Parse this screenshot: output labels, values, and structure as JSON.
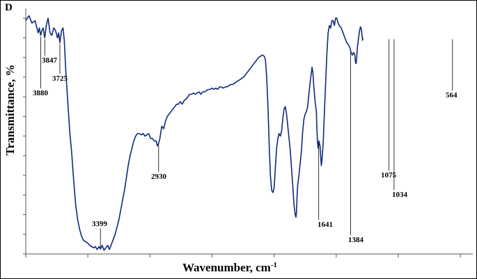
{
  "panel_label": "D",
  "chart_data": {
    "type": "line",
    "xlabel": "Wavenumber, cm",
    "xlabel_superscript": "-1",
    "ylabel": "Transmittance, %",
    "x_reversed": true,
    "xlim": [
      4000,
      400
    ],
    "ylim": [
      0,
      100
    ],
    "grid": false,
    "series": [
      {
        "color": "#0e2a7a",
        "points": [
          [
            4000,
            95
          ],
          [
            3975,
            97
          ],
          [
            3950,
            94
          ],
          [
            3925,
            95
          ],
          [
            3900,
            90
          ],
          [
            3890,
            92
          ],
          [
            3880,
            89
          ],
          [
            3870,
            91
          ],
          [
            3860,
            92
          ],
          [
            3847,
            88
          ],
          [
            3835,
            93
          ],
          [
            3820,
            96
          ],
          [
            3805,
            90
          ],
          [
            3790,
            89
          ],
          [
            3775,
            92
          ],
          [
            3760,
            91
          ],
          [
            3745,
            88
          ],
          [
            3735,
            90
          ],
          [
            3725,
            86
          ],
          [
            3712,
            91
          ],
          [
            3700,
            92
          ],
          [
            3690,
            87
          ],
          [
            3678,
            75
          ],
          [
            3662,
            62
          ],
          [
            3646,
            50
          ],
          [
            3630,
            41
          ],
          [
            3614,
            30
          ],
          [
            3598,
            20
          ],
          [
            3582,
            14
          ],
          [
            3566,
            10
          ],
          [
            3550,
            7
          ],
          [
            3534,
            5.5
          ],
          [
            3518,
            5
          ],
          [
            3502,
            4.5
          ],
          [
            3486,
            3.5
          ],
          [
            3470,
            3
          ],
          [
            3454,
            2.5
          ],
          [
            3440,
            3
          ],
          [
            3425,
            1.8
          ],
          [
            3410,
            3
          ],
          [
            3399,
            2
          ],
          [
            3385,
            3.5
          ],
          [
            3370,
            1.5
          ],
          [
            3355,
            2.5
          ],
          [
            3340,
            3.5
          ],
          [
            3326,
            1.8
          ],
          [
            3310,
            4
          ],
          [
            3295,
            6
          ],
          [
            3280,
            8
          ],
          [
            3265,
            11
          ],
          [
            3250,
            14
          ],
          [
            3235,
            18
          ],
          [
            3220,
            22
          ],
          [
            3205,
            26
          ],
          [
            3190,
            31
          ],
          [
            3175,
            36
          ],
          [
            3160,
            40
          ],
          [
            3145,
            43
          ],
          [
            3130,
            46
          ],
          [
            3115,
            48
          ],
          [
            3100,
            49
          ],
          [
            3085,
            49
          ],
          [
            3070,
            48.5
          ],
          [
            3055,
            49
          ],
          [
            3040,
            48
          ],
          [
            3025,
            48.5
          ],
          [
            3010,
            49
          ],
          [
            2995,
            47
          ],
          [
            2980,
            47
          ],
          [
            2965,
            46
          ],
          [
            2950,
            46
          ],
          [
            2940,
            44
          ],
          [
            2930,
            45
          ],
          [
            2920,
            47
          ],
          [
            2905,
            52
          ],
          [
            2890,
            51
          ],
          [
            2875,
            54
          ],
          [
            2860,
            56
          ],
          [
            2845,
            57
          ],
          [
            2830,
            58
          ],
          [
            2815,
            59
          ],
          [
            2800,
            60
          ],
          [
            2785,
            61
          ],
          [
            2770,
            61
          ],
          [
            2755,
            62
          ],
          [
            2740,
            61
          ],
          [
            2725,
            62.5
          ],
          [
            2710,
            63
          ],
          [
            2695,
            64
          ],
          [
            2680,
            65
          ],
          [
            2665,
            65
          ],
          [
            2650,
            65.5
          ],
          [
            2635,
            65
          ],
          [
            2620,
            65.5
          ],
          [
            2605,
            66
          ],
          [
            2590,
            65
          ],
          [
            2575,
            66
          ],
          [
            2560,
            66
          ],
          [
            2545,
            66.5
          ],
          [
            2530,
            67
          ],
          [
            2515,
            67
          ],
          [
            2500,
            67.5
          ],
          [
            2485,
            67
          ],
          [
            2470,
            67.5
          ],
          [
            2455,
            67
          ],
          [
            2440,
            68
          ],
          [
            2425,
            68
          ],
          [
            2410,
            67.5
          ],
          [
            2395,
            68
          ],
          [
            2380,
            68
          ],
          [
            2365,
            68.5
          ],
          [
            2350,
            69
          ],
          [
            2335,
            69
          ],
          [
            2320,
            69.5
          ],
          [
            2305,
            70
          ],
          [
            2290,
            70.5
          ],
          [
            2275,
            71
          ],
          [
            2260,
            71.5
          ],
          [
            2245,
            72
          ],
          [
            2230,
            73
          ],
          [
            2215,
            74
          ],
          [
            2200,
            75
          ],
          [
            2185,
            76
          ],
          [
            2170,
            77
          ],
          [
            2155,
            78
          ],
          [
            2140,
            79
          ],
          [
            2125,
            80
          ],
          [
            2110,
            80.5
          ],
          [
            2095,
            81
          ],
          [
            2080,
            80.5
          ],
          [
            2070,
            79
          ],
          [
            2060,
            72
          ],
          [
            2050,
            60
          ],
          [
            2040,
            45
          ],
          [
            2030,
            32
          ],
          [
            2020,
            26
          ],
          [
            2010,
            25
          ],
          [
            2000,
            27
          ],
          [
            1990,
            35
          ],
          [
            1980,
            43
          ],
          [
            1970,
            47
          ],
          [
            1960,
            49
          ],
          [
            1950,
            48
          ],
          [
            1940,
            50
          ],
          [
            1930,
            55
          ],
          [
            1920,
            59
          ],
          [
            1910,
            60
          ],
          [
            1900,
            57
          ],
          [
            1890,
            52
          ],
          [
            1880,
            47
          ],
          [
            1870,
            42
          ],
          [
            1860,
            35
          ],
          [
            1850,
            28
          ],
          [
            1840,
            20
          ],
          [
            1830,
            16
          ],
          [
            1825,
            15
          ],
          [
            1820,
            17
          ],
          [
            1815,
            24
          ],
          [
            1810,
            28
          ],
          [
            1800,
            32
          ],
          [
            1790,
            37
          ],
          [
            1780,
            42
          ],
          [
            1770,
            50
          ],
          [
            1760,
            55
          ],
          [
            1750,
            57
          ],
          [
            1740,
            58
          ],
          [
            1730,
            60
          ],
          [
            1720,
            65
          ],
          [
            1710,
            70
          ],
          [
            1700,
            74
          ],
          [
            1695,
            76
          ],
          [
            1688,
            74
          ],
          [
            1680,
            68
          ],
          [
            1670,
            62
          ],
          [
            1660,
            58
          ],
          [
            1655,
            50
          ],
          [
            1650,
            45
          ],
          [
            1645,
            43
          ],
          [
            1640,
            46
          ],
          [
            1630,
            44
          ],
          [
            1625,
            40
          ],
          [
            1620,
            36
          ],
          [
            1615,
            38
          ],
          [
            1605,
            45
          ],
          [
            1595,
            58
          ],
          [
            1585,
            70
          ],
          [
            1575,
            82
          ],
          [
            1565,
            90
          ],
          [
            1555,
            93
          ],
          [
            1545,
            92
          ],
          [
            1535,
            95
          ],
          [
            1525,
            95
          ],
          [
            1515,
            93
          ],
          [
            1505,
            96
          ],
          [
            1495,
            96
          ],
          [
            1485,
            94
          ],
          [
            1475,
            93
          ],
          [
            1460,
            92
          ],
          [
            1445,
            90
          ],
          [
            1430,
            88
          ],
          [
            1415,
            86
          ],
          [
            1400,
            85
          ],
          [
            1390,
            84
          ],
          [
            1380,
            82
          ],
          [
            1370,
            81
          ],
          [
            1360,
            82
          ],
          [
            1350,
            81
          ],
          [
            1345,
            78
          ],
          [
            1340,
            77.5
          ],
          [
            1335,
            80
          ],
          [
            1330,
            84
          ],
          [
            1320,
            88
          ],
          [
            1312,
            91
          ],
          [
            1305,
            92.5
          ],
          [
            1298,
            91.5
          ],
          [
            1292,
            89
          ],
          [
            1288,
            87
          ],
          [
            1285,
            88
          ]
        ]
      }
    ],
    "annotations": [
      {
        "label": "3880",
        "x": 3880
      },
      {
        "label": "3847",
        "x": 3847
      },
      {
        "label": "3725",
        "x": 3725
      },
      {
        "label": "3399",
        "x": 3399
      },
      {
        "label": "2930",
        "x": 2930
      },
      {
        "label": "1641",
        "x": 1641
      },
      {
        "label": "1384",
        "x": 1384
      },
      {
        "label": "1075",
        "x": 1075
      },
      {
        "label": "1034",
        "x": 1034
      },
      {
        "label": "564",
        "x": 564
      }
    ]
  }
}
